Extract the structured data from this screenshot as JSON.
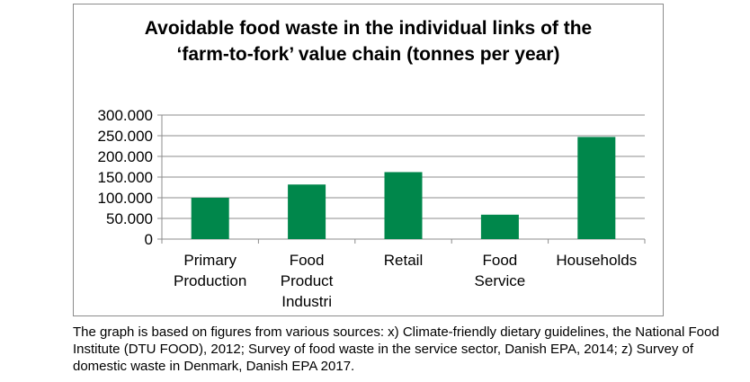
{
  "chart_data": {
    "type": "bar",
    "title": "Avoidable food waste in the individual links of the ‘farm-to-fork’ value chain (tonnes per year)",
    "categories": [
      [
        "Primary",
        "Production"
      ],
      [
        "Food",
        "Product",
        "Industri"
      ],
      [
        "Retail"
      ],
      [
        "Food",
        "Service"
      ],
      [
        "Households"
      ]
    ],
    "values": [
      100000,
      132000,
      162000,
      59000,
      247000
    ],
    "y_ticks": [
      0,
      50000,
      100000,
      150000,
      200000,
      250000,
      300000
    ],
    "y_tick_labels": [
      "0",
      "50.000",
      "100.000",
      "150.000",
      "200.000",
      "250.000",
      "300.000"
    ],
    "ylim": [
      0,
      300000
    ],
    "grid": true,
    "bar_color": "#00874b"
  },
  "caption": "The graph is based on figures from various sources: x) Climate-friendly dietary guidelines, the National Food Institute (DTU FOOD), 2012; Survey of food waste in the service sector, Danish EPA, 2014; z) Survey of domestic waste in Denmark, Danish EPA 2017."
}
